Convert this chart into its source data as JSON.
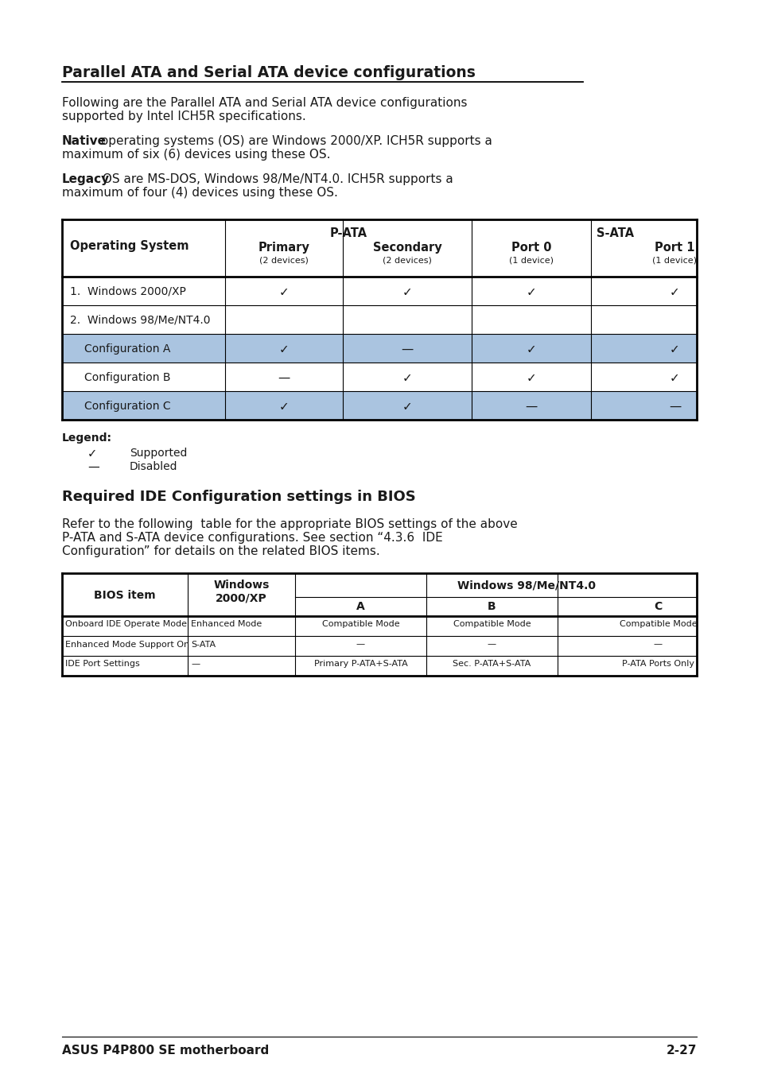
{
  "title": "Parallel ATA and Serial ATA device configurations",
  "intro_line1": "Following are the Parallel ATA and Serial ATA device configurations",
  "intro_line2": "supported by Intel ICH5R specifications.",
  "native_bold": "Native",
  "native_rest": " operating systems (OS) are Windows 2000/XP. ICH5R supports a",
  "native_rest2": "maximum of six (6) devices using these OS.",
  "legacy_bold": "Legacy",
  "legacy_rest": " OS are MS-DOS, Windows 98/Me/NT4.0. ICH5R supports a",
  "legacy_rest2": "maximum of four (4) devices using these OS.",
  "section2_title": "Required IDE Configuration settings in BIOS",
  "section2_line1": "Refer to the following  table for the appropriate BIOS settings of the above",
  "section2_line2": "P-ATA and S-ATA device configurations. See section “4.3.6  IDE",
  "section2_line3": "Configuration” for details on the related BIOS items.",
  "footer_left": "ASUS P4P800 SE motherboard",
  "footer_right": "2-27",
  "bg_color": "#ffffff",
  "shaded_color": "#aac4e0",
  "text_color": "#1a1a1a"
}
